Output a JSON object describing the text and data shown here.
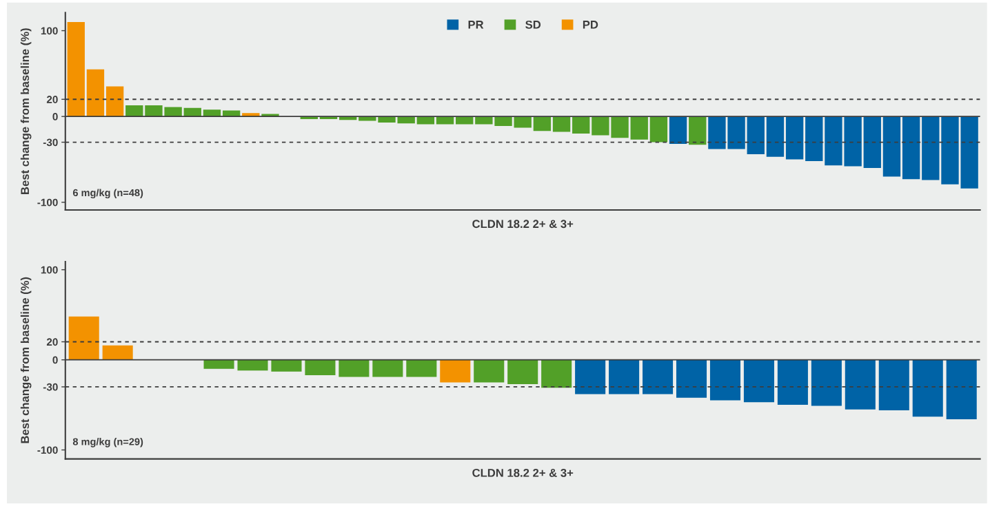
{
  "chart_data": [
    {
      "type": "bar",
      "ylabel": "Best change from baseline (%)",
      "xlabel": "CLDN 18.2 2+ & 3+",
      "annotations": [
        "6 mg/kg (n=48)"
      ],
      "categories": [
        null,
        null,
        null,
        null,
        null,
        null,
        null,
        null,
        null,
        null,
        null,
        null,
        null,
        null,
        null,
        null,
        null,
        null,
        null,
        null,
        null,
        null,
        null,
        null,
        null,
        null,
        null,
        null,
        null,
        null,
        null,
        null,
        null,
        null,
        null,
        null,
        null,
        null,
        null,
        null,
        null,
        null,
        null,
        null,
        null,
        null,
        null
      ],
      "series": [
        {
          "name": "PR",
          "color": "#0063a6",
          "values": [
            null,
            null,
            null,
            null,
            null,
            null,
            null,
            null,
            null,
            null,
            null,
            null,
            null,
            null,
            null,
            null,
            null,
            null,
            null,
            null,
            null,
            null,
            null,
            null,
            null,
            null,
            null,
            null,
            null,
            null,
            null,
            -32,
            null,
            -38,
            -38,
            -44,
            -47,
            -50,
            -52,
            -57,
            -58,
            -60,
            -70,
            -73,
            -74,
            -79,
            -84
          ]
        },
        {
          "name": "SD",
          "color": "#52a028",
          "values": [
            null,
            null,
            null,
            13,
            13,
            11,
            10,
            8,
            7,
            null,
            3,
            null,
            -3,
            -3,
            -4,
            -5,
            -7,
            -8,
            -9,
            -9,
            -9,
            -9,
            -11,
            -13,
            -17,
            -18,
            -20,
            -22,
            -25,
            -27,
            -30,
            null,
            -33,
            null,
            null,
            null,
            null,
            null,
            null,
            null,
            null,
            null,
            null,
            null,
            null,
            null,
            null
          ]
        },
        {
          "name": "PD",
          "color": "#f39200",
          "values": [
            110,
            55,
            35,
            null,
            null,
            null,
            null,
            null,
            null,
            4,
            null,
            null,
            null,
            null,
            null,
            null,
            null,
            null,
            null,
            null,
            null,
            null,
            null,
            null,
            null,
            null,
            null,
            null,
            null,
            null,
            null,
            null,
            null,
            null,
            null,
            null,
            null,
            null,
            null,
            null,
            null,
            null,
            null,
            null,
            null,
            null,
            null
          ]
        }
      ],
      "ylim": [
        -109,
        121
      ],
      "yticks": [
        -100,
        -30,
        0,
        20,
        100
      ],
      "tick_labels": "y",
      "grid": false,
      "legend": "top",
      "ref_lines": [
        {
          "axis": "y",
          "value": 20,
          "line_style": "dashed"
        },
        {
          "axis": "y",
          "value": -30,
          "line_style": "dashed"
        },
        {
          "axis": "y",
          "value": 0,
          "line_style": "solid"
        }
      ]
    },
    {
      "type": "bar",
      "ylabel": "Best change from baseline (%)",
      "xlabel": "CLDN 18.2 2+ & 3+",
      "annotations": [
        "8 mg/kg (n=29)"
      ],
      "categories": [
        null,
        null,
        null,
        null,
        null,
        null,
        null,
        null,
        null,
        null,
        null,
        null,
        null,
        null,
        null,
        null,
        null,
        null,
        null,
        null,
        null,
        null,
        null,
        null,
        null,
        null,
        null
      ],
      "series": [
        {
          "color": "#0063a6",
          "values": [
            null,
            null,
            null,
            null,
            null,
            null,
            null,
            null,
            null,
            null,
            null,
            null,
            null,
            null,
            null,
            -38,
            -38,
            -38,
            -42,
            -45,
            -47,
            -50,
            -51,
            -55,
            -56,
            -63,
            -66
          ]
        },
        {
          "color": "#52a028",
          "values": [
            null,
            null,
            null,
            null,
            -10,
            -12,
            -13,
            -17,
            -19,
            -19,
            -19,
            null,
            -25,
            -27,
            -31,
            null,
            null,
            null,
            null,
            null,
            null,
            null,
            null,
            null,
            null,
            null,
            null
          ]
        },
        {
          "color": "#f39200",
          "values": [
            48,
            16,
            null,
            null,
            null,
            null,
            null,
            null,
            null,
            null,
            null,
            -25,
            null,
            null,
            null,
            null,
            null,
            null,
            null,
            null,
            null,
            null,
            null,
            null,
            null,
            null,
            null
          ]
        }
      ],
      "ylim": [
        -110,
        109
      ],
      "yticks": [
        -100,
        -30,
        0,
        20,
        100
      ],
      "tick_labels": "y",
      "grid": false,
      "ref_lines": [
        {
          "axis": "y",
          "value": 20,
          "line_style": "dashed"
        },
        {
          "axis": "y",
          "value": -30,
          "line_style": "dashed"
        },
        {
          "axis": "y",
          "value": 0,
          "line_style": "solid"
        }
      ]
    }
  ]
}
